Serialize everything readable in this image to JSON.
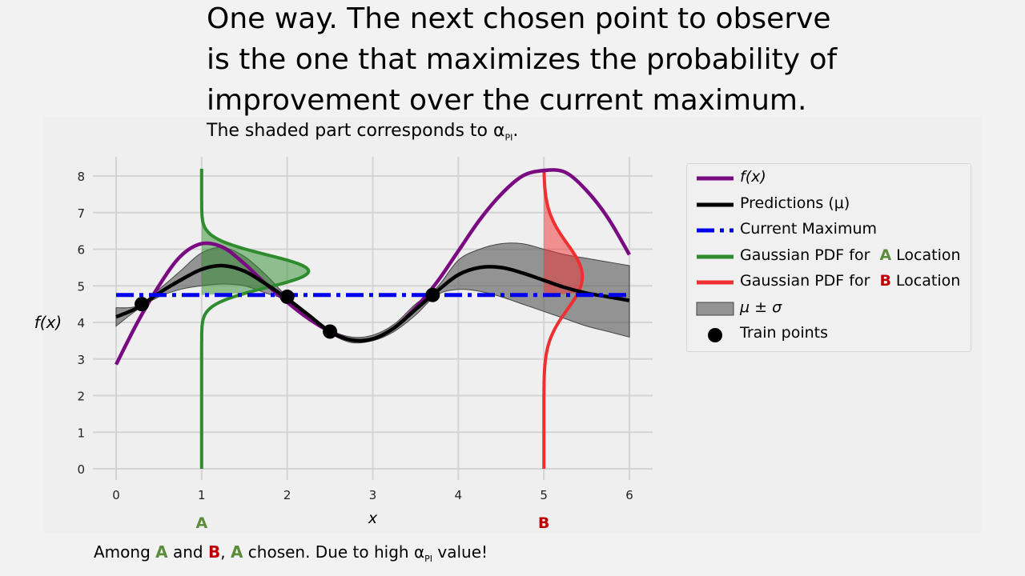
{
  "slide": {
    "title_lines": [
      "One way. The next chosen point to observe",
      "is the one that maximizes the probability of",
      "improvement over the current maximum."
    ],
    "subtitle_prefix": "The shaded part corresponds to ",
    "alpha_symbol": "α",
    "alpha_subscript": "PI",
    "subtitle_suffix": ".",
    "note": {
      "part1": "Among ",
      "tag_a": "A",
      "part2": " and ",
      "tag_b": "B",
      "part3": ", ",
      "tag_a2": "A",
      "part4": " chosen. Due to high ",
      "alpha_symbol": "α",
      "alpha_subscript": "PI",
      "part5": " value!"
    },
    "marker_a": "A",
    "marker_b": "B"
  },
  "colors": {
    "f": "#7a0a82",
    "mu": "#000000",
    "current_max": "#0000ee",
    "pdf_a": "#2e8b2e",
    "pdf_b": "#f03030",
    "band": "#555555",
    "tag_a": "#5b8c3a",
    "tag_b": "#c00000"
  },
  "chart_data": {
    "type": "line",
    "xlabel": "x",
    "ylabel": "f(x)",
    "xlim": [
      0,
      6
    ],
    "ylim": [
      0,
      8
    ],
    "xticks": [
      0,
      1,
      2,
      3,
      4,
      5,
      6
    ],
    "yticks": [
      0,
      1,
      2,
      3,
      4,
      5,
      6,
      7,
      8
    ],
    "grid": true,
    "legend_position": "outside-right",
    "series": [
      {
        "name": "f(x)",
        "x": [
          0,
          0.25,
          0.5,
          0.75,
          1,
          1.25,
          1.5,
          1.75,
          2,
          2.25,
          2.5,
          2.75,
          3,
          3.25,
          3.5,
          3.75,
          4,
          4.25,
          4.5,
          4.75,
          5,
          5.25,
          5.5,
          5.75,
          6
        ],
        "y": [
          2.85,
          4.0,
          5.0,
          5.8,
          6.15,
          6.05,
          5.6,
          5.05,
          4.55,
          4.1,
          3.75,
          3.52,
          3.55,
          3.85,
          4.4,
          5.1,
          5.95,
          6.8,
          7.5,
          8.0,
          8.15,
          8.1,
          7.6,
          6.85,
          5.85
        ]
      },
      {
        "name": "Predictions (μ)",
        "x": [
          0,
          0.25,
          0.5,
          0.75,
          1,
          1.25,
          1.5,
          1.75,
          2,
          2.25,
          2.5,
          2.75,
          3,
          3.25,
          3.5,
          3.75,
          4,
          4.25,
          4.5,
          4.75,
          5,
          5.25,
          5.5,
          5.75,
          6
        ],
        "y": [
          4.15,
          4.4,
          4.8,
          5.15,
          5.45,
          5.55,
          5.4,
          5.05,
          4.65,
          4.2,
          3.75,
          3.52,
          3.55,
          3.85,
          4.35,
          4.85,
          5.3,
          5.5,
          5.5,
          5.35,
          5.15,
          4.95,
          4.8,
          4.7,
          4.6
        ]
      },
      {
        "name": "Current Maximum",
        "x": [
          0,
          6
        ],
        "y": [
          4.75,
          4.75
        ]
      }
    ],
    "band": {
      "name": "μ ± σ",
      "x": [
        0,
        0.25,
        0.5,
        0.75,
        1,
        1.25,
        1.5,
        1.75,
        2,
        2.25,
        2.5,
        2.75,
        3,
        3.25,
        3.5,
        3.75,
        4,
        4.25,
        4.5,
        4.75,
        5,
        5.25,
        5.5,
        5.75,
        6
      ],
      "lower": [
        3.9,
        4.35,
        4.7,
        4.9,
        5.0,
        5.05,
        5.0,
        4.8,
        4.6,
        4.15,
        3.7,
        3.45,
        3.5,
        3.75,
        4.2,
        4.75,
        4.9,
        4.85,
        4.7,
        4.5,
        4.3,
        4.1,
        3.9,
        3.75,
        3.6
      ],
      "upper": [
        4.4,
        4.45,
        4.9,
        5.4,
        5.9,
        6.05,
        5.8,
        5.3,
        4.7,
        4.25,
        3.8,
        3.6,
        3.65,
        3.95,
        4.5,
        4.95,
        5.7,
        6.0,
        6.15,
        6.15,
        6.0,
        5.85,
        5.75,
        5.65,
        5.55
      ]
    },
    "train_points": {
      "name": "Train points",
      "x": [
        0.3,
        2.0,
        2.5,
        3.7
      ],
      "y": [
        4.5,
        4.7,
        3.75,
        4.75
      ]
    },
    "pdfs": [
      {
        "name": "Gaussian PDF for",
        "tag": "A",
        "suffix": "Location",
        "x_location": 1,
        "mean": 5.4,
        "sigma": 0.45,
        "peak_width": 1.25,
        "shaded_above": 4.75
      },
      {
        "name": "Gaussian PDF for",
        "tag": "B",
        "suffix": "Location",
        "x_location": 5,
        "mean": 5.25,
        "sigma": 0.9,
        "peak_width": 0.45,
        "shaded_above": 4.75
      }
    ],
    "legend": [
      {
        "key": "f",
        "label": "f(x)",
        "italic": true
      },
      {
        "key": "mu",
        "label": "Predictions (μ)"
      },
      {
        "key": "current_max",
        "label": "Current Maximum"
      },
      {
        "key": "pdf_a",
        "label": "Gaussian PDF for",
        "tag": "A",
        "suffix": "Location"
      },
      {
        "key": "pdf_b",
        "label": "Gaussian PDF for",
        "tag": "B",
        "suffix": "Location"
      },
      {
        "key": "band",
        "label": "μ ± σ",
        "italic": true
      },
      {
        "key": "train",
        "label": "Train points"
      }
    ]
  }
}
